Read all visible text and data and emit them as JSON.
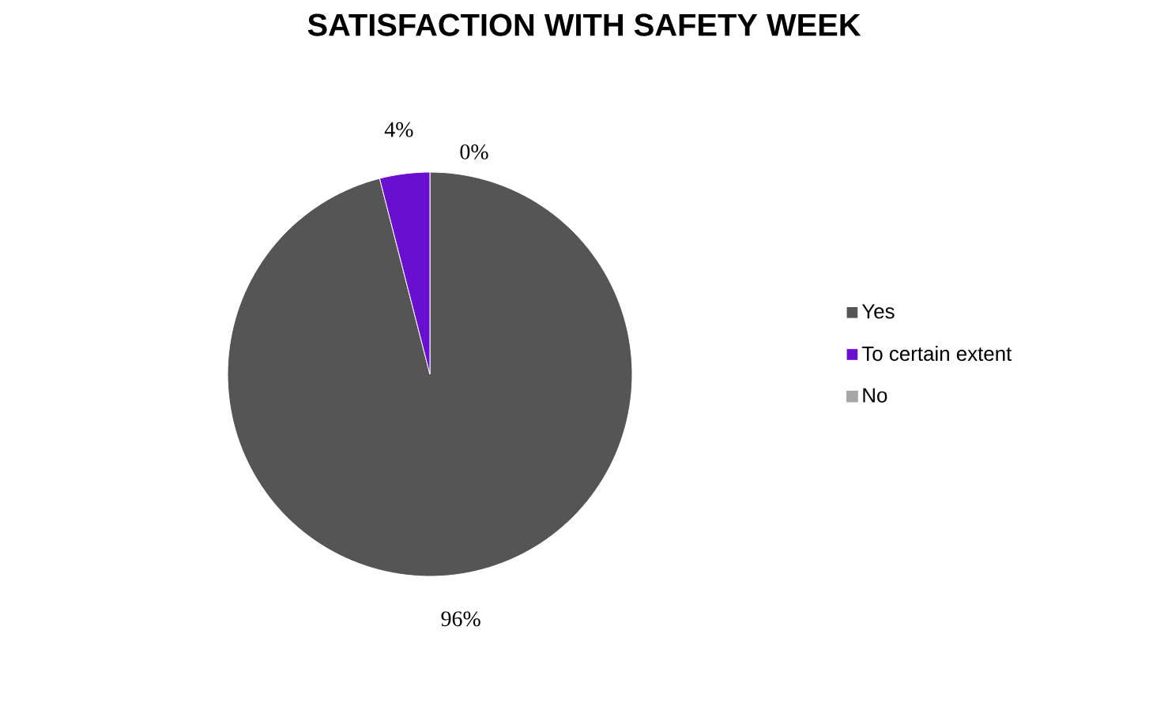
{
  "chart_data": {
    "type": "pie",
    "title": "SATISFACTION WITH SAFETY WEEK",
    "categories": [
      "Yes",
      "To certain extent",
      "No"
    ],
    "values": [
      96,
      4,
      0
    ],
    "colors": [
      "#555555",
      "#6a0fd0",
      "#a6a6a6"
    ],
    "value_labels": [
      "96%",
      "4%",
      "0%"
    ],
    "legend": "right"
  }
}
